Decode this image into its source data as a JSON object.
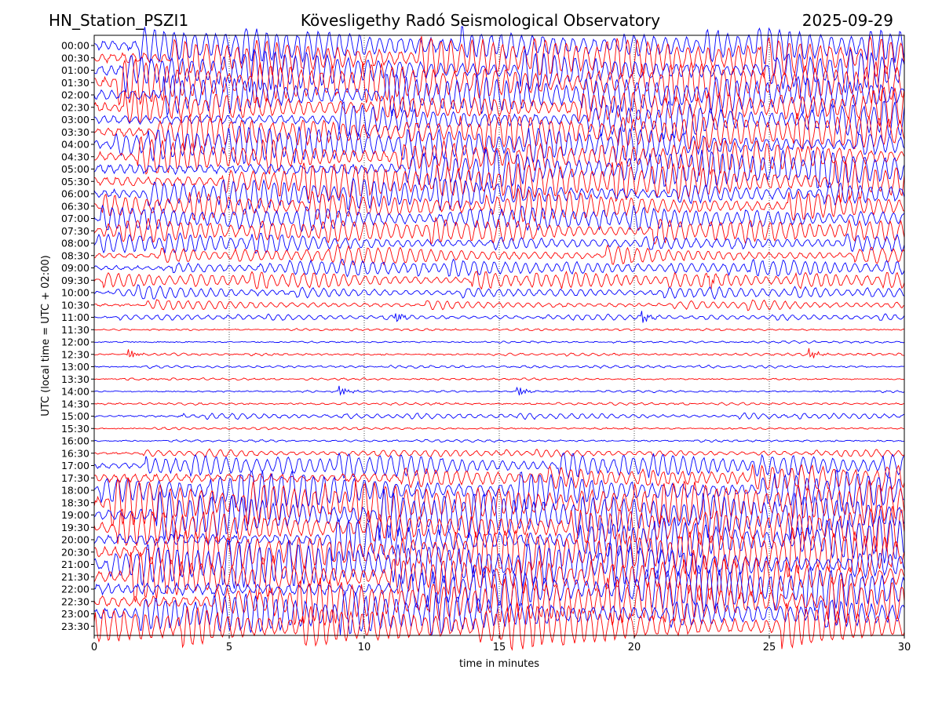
{
  "header": {
    "station": "HN_Station_PSZI1",
    "observatory": "Kövesligethy Radó Seismological Observatory",
    "date": "2025-09-29"
  },
  "chart_data": {
    "type": "line",
    "title": "Kövesligethy Radó Seismological Observatory",
    "xlabel": "time in minutes",
    "ylabel": "UTC (local time = UTC + 02:00)",
    "xlim": [
      0,
      30
    ],
    "x_ticks": [
      "0",
      "5",
      "10",
      "15",
      "20",
      "25",
      "30"
    ],
    "x_tick_values": [
      0,
      5,
      10,
      15,
      20,
      25,
      30
    ],
    "vertical_gridlines_at": [
      5,
      10,
      15,
      20,
      25
    ],
    "row_labels": [
      "00:00",
      "00:30",
      "01:00",
      "01:30",
      "02:00",
      "02:30",
      "03:00",
      "03:30",
      "04:00",
      "04:30",
      "05:00",
      "05:30",
      "06:00",
      "06:30",
      "07:00",
      "07:30",
      "08:00",
      "08:30",
      "09:00",
      "09:30",
      "10:00",
      "10:30",
      "11:00",
      "11:30",
      "12:00",
      "12:30",
      "13:00",
      "13:30",
      "14:00",
      "14:30",
      "15:00",
      "15:30",
      "16:00",
      "16:30",
      "17:00",
      "17:30",
      "18:00",
      "18:30",
      "19:00",
      "19:30",
      "20:00",
      "20:30",
      "21:00",
      "21:30",
      "22:00",
      "22:30",
      "23:00",
      "23:30"
    ],
    "trace_colors": [
      "#0000ff",
      "#ff0000"
    ],
    "relative_amplitude": [
      0.85,
      0.85,
      0.85,
      0.85,
      0.8,
      0.8,
      0.75,
      0.75,
      0.75,
      0.75,
      0.8,
      0.8,
      0.7,
      0.65,
      0.5,
      0.5,
      0.45,
      0.4,
      0.35,
      0.35,
      0.3,
      0.2,
      0.12,
      0.04,
      0.04,
      0.05,
      0.05,
      0.04,
      0.04,
      0.05,
      0.12,
      0.05,
      0.05,
      0.15,
      0.5,
      0.7,
      0.85,
      0.9,
      0.95,
      0.95,
      0.95,
      0.95,
      0.95,
      0.95,
      0.95,
      0.95,
      0.95,
      0.95
    ],
    "events": [
      {
        "row": "12:30",
        "minute": 1.3
      },
      {
        "row": "14:00",
        "minute": 9.1
      },
      {
        "row": "11:00",
        "minute": 20.3
      },
      {
        "row": "11:00",
        "minute": 11.2
      },
      {
        "row": "09:30",
        "minute": 22.8
      },
      {
        "row": "12:30",
        "minute": 26.5
      },
      {
        "row": "14:00",
        "minute": 15.7
      }
    ]
  }
}
